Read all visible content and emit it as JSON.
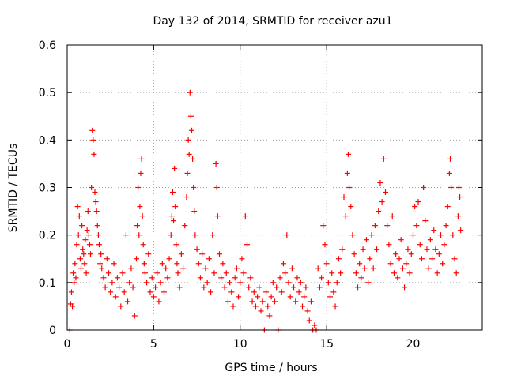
{
  "chart_data": {
    "type": "scatter",
    "title": "Day 132 of 2014, SRMTID for receiver azu1",
    "xlabel": "GPS time / hours",
    "ylabel": "SRMTID / TECUs",
    "xlim": [
      0,
      24
    ],
    "ylim": [
      0,
      0.6
    ],
    "xticks": [
      0,
      5,
      10,
      15,
      20
    ],
    "yticks": [
      0,
      0.1,
      0.2,
      0.3,
      0.4,
      0.5,
      0.6
    ],
    "xtick_labels": [
      "0",
      "5",
      "10",
      "15",
      "20"
    ],
    "ytick_labels": [
      "0",
      "0.1",
      "0.2",
      "0.3",
      "0.4",
      "0.5",
      "0.6"
    ],
    "grid": true,
    "marker": "+",
    "color": "#ff0000",
    "series": [
      {
        "name": "SRMTID",
        "points": [
          [
            0.15,
            0.0
          ],
          [
            0.2,
            0.055
          ],
          [
            0.25,
            0.08
          ],
          [
            0.3,
            0.05
          ],
          [
            0.35,
            0.12
          ],
          [
            0.4,
            0.1
          ],
          [
            0.45,
            0.14
          ],
          [
            0.5,
            0.11
          ],
          [
            0.55,
            0.18
          ],
          [
            0.6,
            0.26
          ],
          [
            0.65,
            0.2
          ],
          [
            0.7,
            0.24
          ],
          [
            0.75,
            0.15
          ],
          [
            0.8,
            0.13
          ],
          [
            0.85,
            0.22
          ],
          [
            0.9,
            0.17
          ],
          [
            0.95,
            0.16
          ],
          [
            1.0,
            0.14
          ],
          [
            1.05,
            0.19
          ],
          [
            1.1,
            0.12
          ],
          [
            1.15,
            0.21
          ],
          [
            1.2,
            0.25
          ],
          [
            1.25,
            0.2
          ],
          [
            1.3,
            0.18
          ],
          [
            1.35,
            0.16
          ],
          [
            1.4,
            0.3
          ],
          [
            1.45,
            0.42
          ],
          [
            1.5,
            0.4
          ],
          [
            1.55,
            0.37
          ],
          [
            1.6,
            0.29
          ],
          [
            1.65,
            0.27
          ],
          [
            1.7,
            0.25
          ],
          [
            1.75,
            0.22
          ],
          [
            1.8,
            0.2
          ],
          [
            1.85,
            0.18
          ],
          [
            1.9,
            0.14
          ],
          [
            1.95,
            0.16
          ],
          [
            2.0,
            0.13
          ],
          [
            2.1,
            0.11
          ],
          [
            2.2,
            0.09
          ],
          [
            2.3,
            0.15
          ],
          [
            2.4,
            0.12
          ],
          [
            2.5,
            0.08
          ],
          [
            2.6,
            0.1
          ],
          [
            2.7,
            0.14
          ],
          [
            2.8,
            0.07
          ],
          [
            2.9,
            0.11
          ],
          [
            3.0,
            0.09
          ],
          [
            3.1,
            0.05
          ],
          [
            3.2,
            0.12
          ],
          [
            3.3,
            0.08
          ],
          [
            3.4,
            0.2
          ],
          [
            3.5,
            0.06
          ],
          [
            3.6,
            0.1
          ],
          [
            3.7,
            0.13
          ],
          [
            3.8,
            0.09
          ],
          [
            3.9,
            0.03
          ],
          [
            4.0,
            0.15
          ],
          [
            4.05,
            0.22
          ],
          [
            4.1,
            0.3
          ],
          [
            4.15,
            0.2
          ],
          [
            4.2,
            0.26
          ],
          [
            4.25,
            0.33
          ],
          [
            4.3,
            0.36
          ],
          [
            4.35,
            0.24
          ],
          [
            4.4,
            0.18
          ],
          [
            4.45,
            0.14
          ],
          [
            4.5,
            0.12
          ],
          [
            4.6,
            0.1
          ],
          [
            4.7,
            0.16
          ],
          [
            4.8,
            0.08
          ],
          [
            4.9,
            0.11
          ],
          [
            5.0,
            0.07
          ],
          [
            5.1,
            0.09
          ],
          [
            5.2,
            0.12
          ],
          [
            5.3,
            0.06
          ],
          [
            5.4,
            0.1
          ],
          [
            5.5,
            0.14
          ],
          [
            5.6,
            0.08
          ],
          [
            5.7,
            0.13
          ],
          [
            5.8,
            0.11
          ],
          [
            5.9,
            0.15
          ],
          [
            6.0,
            0.2
          ],
          [
            6.05,
            0.24
          ],
          [
            6.1,
            0.29
          ],
          [
            6.15,
            0.23
          ],
          [
            6.2,
            0.34
          ],
          [
            6.25,
            0.26
          ],
          [
            6.3,
            0.18
          ],
          [
            6.35,
            0.14
          ],
          [
            6.4,
            0.12
          ],
          [
            6.5,
            0.09
          ],
          [
            6.6,
            0.16
          ],
          [
            6.7,
            0.13
          ],
          [
            6.8,
            0.22
          ],
          [
            6.9,
            0.28
          ],
          [
            6.95,
            0.33
          ],
          [
            7.0,
            0.4
          ],
          [
            7.05,
            0.37
          ],
          [
            7.1,
            0.5
          ],
          [
            7.15,
            0.45
          ],
          [
            7.2,
            0.42
          ],
          [
            7.25,
            0.36
          ],
          [
            7.3,
            0.3
          ],
          [
            7.35,
            0.25
          ],
          [
            7.4,
            0.2
          ],
          [
            7.5,
            0.17
          ],
          [
            7.6,
            0.14
          ],
          [
            7.7,
            0.11
          ],
          [
            7.8,
            0.16
          ],
          [
            7.9,
            0.09
          ],
          [
            8.0,
            0.13
          ],
          [
            8.1,
            0.1
          ],
          [
            8.2,
            0.15
          ],
          [
            8.3,
            0.08
          ],
          [
            8.4,
            0.2
          ],
          [
            8.5,
            0.12
          ],
          [
            8.6,
            0.35
          ],
          [
            8.65,
            0.3
          ],
          [
            8.7,
            0.24
          ],
          [
            8.8,
            0.16
          ],
          [
            8.9,
            0.11
          ],
          [
            9.0,
            0.14
          ],
          [
            9.1,
            0.09
          ],
          [
            9.2,
            0.12
          ],
          [
            9.3,
            0.06
          ],
          [
            9.4,
            0.1
          ],
          [
            9.5,
            0.08
          ],
          [
            9.6,
            0.05
          ],
          [
            9.7,
            0.11
          ],
          [
            9.8,
            0.13
          ],
          [
            9.9,
            0.07
          ],
          [
            10.0,
            0.1
          ],
          [
            10.1,
            0.15
          ],
          [
            10.2,
            0.12
          ],
          [
            10.3,
            0.24
          ],
          [
            10.4,
            0.18
          ],
          [
            10.5,
            0.09
          ],
          [
            10.6,
            0.11
          ],
          [
            10.7,
            0.06
          ],
          [
            10.8,
            0.08
          ],
          [
            10.9,
            0.05
          ],
          [
            11.0,
            0.07
          ],
          [
            11.1,
            0.09
          ],
          [
            11.2,
            0.04
          ],
          [
            11.3,
            0.06
          ],
          [
            11.4,
            0.0
          ],
          [
            11.5,
            0.08
          ],
          [
            11.6,
            0.05
          ],
          [
            11.7,
            0.03
          ],
          [
            11.8,
            0.07
          ],
          [
            11.9,
            0.1
          ],
          [
            12.0,
            0.06
          ],
          [
            12.1,
            0.09
          ],
          [
            12.2,
            0.0
          ],
          [
            12.3,
            0.11
          ],
          [
            12.4,
            0.08
          ],
          [
            12.5,
            0.14
          ],
          [
            12.6,
            0.12
          ],
          [
            12.7,
            0.2
          ],
          [
            12.8,
            0.1
          ],
          [
            12.9,
            0.07
          ],
          [
            13.0,
            0.13
          ],
          [
            13.1,
            0.09
          ],
          [
            13.2,
            0.06
          ],
          [
            13.3,
            0.11
          ],
          [
            13.4,
            0.08
          ],
          [
            13.5,
            0.1
          ],
          [
            13.6,
            0.05
          ],
          [
            13.7,
            0.07
          ],
          [
            13.8,
            0.09
          ],
          [
            13.9,
            0.04
          ],
          [
            14.0,
            0.02
          ],
          [
            14.1,
            0.06
          ],
          [
            14.2,
            0.0
          ],
          [
            14.3,
            0.01
          ],
          [
            14.4,
            0.0
          ],
          [
            14.5,
            0.13
          ],
          [
            14.6,
            0.09
          ],
          [
            14.7,
            0.11
          ],
          [
            14.8,
            0.22
          ],
          [
            14.9,
            0.18
          ],
          [
            15.0,
            0.14
          ],
          [
            15.1,
            0.1
          ],
          [
            15.2,
            0.07
          ],
          [
            15.3,
            0.12
          ],
          [
            15.4,
            0.08
          ],
          [
            15.5,
            0.05
          ],
          [
            15.6,
            0.1
          ],
          [
            15.7,
            0.15
          ],
          [
            15.8,
            0.12
          ],
          [
            15.9,
            0.17
          ],
          [
            16.0,
            0.28
          ],
          [
            16.1,
            0.24
          ],
          [
            16.2,
            0.33
          ],
          [
            16.25,
            0.37
          ],
          [
            16.3,
            0.3
          ],
          [
            16.4,
            0.26
          ],
          [
            16.5,
            0.2
          ],
          [
            16.6,
            0.16
          ],
          [
            16.7,
            0.12
          ],
          [
            16.8,
            0.09
          ],
          [
            16.9,
            0.14
          ],
          [
            17.0,
            0.11
          ],
          [
            17.1,
            0.17
          ],
          [
            17.2,
            0.13
          ],
          [
            17.3,
            0.19
          ],
          [
            17.4,
            0.1
          ],
          [
            17.5,
            0.15
          ],
          [
            17.6,
            0.2
          ],
          [
            17.7,
            0.13
          ],
          [
            17.8,
            0.22
          ],
          [
            17.9,
            0.17
          ],
          [
            18.0,
            0.25
          ],
          [
            18.1,
            0.31
          ],
          [
            18.2,
            0.27
          ],
          [
            18.3,
            0.36
          ],
          [
            18.4,
            0.29
          ],
          [
            18.5,
            0.22
          ],
          [
            18.6,
            0.18
          ],
          [
            18.7,
            0.14
          ],
          [
            18.8,
            0.24
          ],
          [
            18.9,
            0.12
          ],
          [
            19.0,
            0.16
          ],
          [
            19.1,
            0.11
          ],
          [
            19.2,
            0.15
          ],
          [
            19.3,
            0.19
          ],
          [
            19.4,
            0.13
          ],
          [
            19.5,
            0.09
          ],
          [
            19.6,
            0.14
          ],
          [
            19.7,
            0.17
          ],
          [
            19.8,
            0.12
          ],
          [
            19.9,
            0.16
          ],
          [
            20.0,
            0.2
          ],
          [
            20.1,
            0.26
          ],
          [
            20.2,
            0.22
          ],
          [
            20.3,
            0.27
          ],
          [
            20.4,
            0.18
          ],
          [
            20.5,
            0.15
          ],
          [
            20.6,
            0.3
          ],
          [
            20.7,
            0.23
          ],
          [
            20.8,
            0.17
          ],
          [
            20.9,
            0.13
          ],
          [
            21.0,
            0.19
          ],
          [
            21.1,
            0.15
          ],
          [
            21.2,
            0.21
          ],
          [
            21.3,
            0.17
          ],
          [
            21.4,
            0.12
          ],
          [
            21.5,
            0.16
          ],
          [
            21.6,
            0.2
          ],
          [
            21.7,
            0.14
          ],
          [
            21.8,
            0.18
          ],
          [
            21.9,
            0.22
          ],
          [
            22.0,
            0.26
          ],
          [
            22.1,
            0.33
          ],
          [
            22.15,
            0.36
          ],
          [
            22.2,
            0.3
          ],
          [
            22.3,
            0.2
          ],
          [
            22.4,
            0.15
          ],
          [
            22.5,
            0.12
          ],
          [
            22.6,
            0.24
          ],
          [
            22.65,
            0.3
          ],
          [
            22.7,
            0.28
          ],
          [
            22.75,
            0.21
          ]
        ]
      }
    ]
  }
}
